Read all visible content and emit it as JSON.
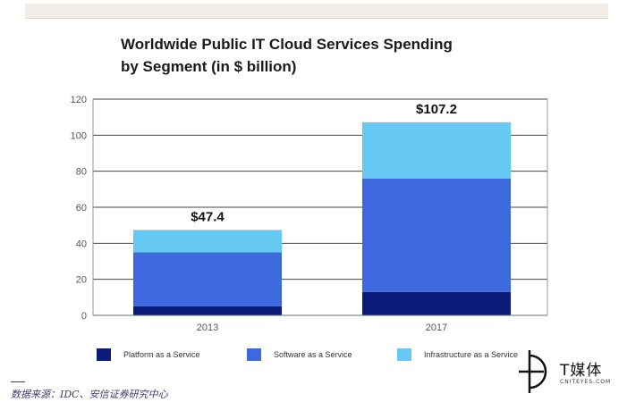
{
  "source_note": "数据来源：IDC、安信证券研究中心",
  "watermark": {
    "text": "T媒体",
    "subtext": "CNITEYES.COM"
  },
  "colors": {
    "platform": "#0d1c7a",
    "software": "#3d68de",
    "infrastructure": "#66c9f3",
    "gridline": "#444444",
    "axis_text": "#555555"
  },
  "chart_data": {
    "type": "bar",
    "stacked": true,
    "title": "Worldwide Public IT Cloud Services Spending by Segment (in $ billion)",
    "title_lines": [
      "Worldwide Public IT Cloud Services Spending",
      "by Segment (in $ billion)"
    ],
    "categories": [
      "2013",
      "2017"
    ],
    "series": [
      {
        "name": "Platform as a Service",
        "values": [
          5,
          13
        ]
      },
      {
        "name": "Software as a Service",
        "values": [
          30,
          63
        ]
      },
      {
        "name": "Infrastructure as a Service",
        "values": [
          12.4,
          31.2
        ]
      }
    ],
    "totals": [
      "$47.4",
      "$107.2"
    ],
    "ylim": [
      0,
      120
    ],
    "yticks": [
      0,
      20,
      40,
      60,
      80,
      100,
      120
    ],
    "xlabel": "",
    "ylabel": "",
    "grid": true,
    "legend_position": "bottom"
  }
}
